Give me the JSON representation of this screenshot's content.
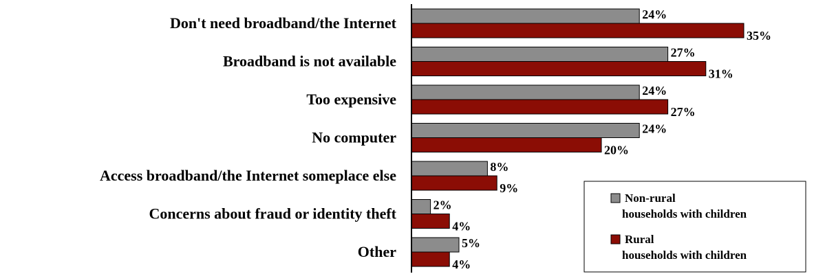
{
  "chart_data": {
    "type": "bar",
    "orientation": "horizontal",
    "categories": [
      "Don't need broadband/the Internet",
      "Broadband is not available",
      "Too expensive",
      "No computer",
      "Access broadband/the Internet someplace else",
      "Concerns about fraud or identity theft",
      "Other"
    ],
    "series": [
      {
        "name": "Non-rural households with children",
        "legend_lines": [
          "Non-rural",
          "households with children"
        ],
        "color": "#8c8c8c",
        "values": [
          24,
          27,
          24,
          24,
          8,
          2,
          5
        ],
        "labels": [
          "24%",
          "27%",
          "24%",
          "24%",
          "8%",
          "2%",
          "5%"
        ]
      },
      {
        "name": "Rural households with children",
        "legend_lines": [
          "Rural",
          "households with children"
        ],
        "color": "#8b0d05",
        "values": [
          35,
          31,
          27,
          20,
          9,
          4,
          4
        ],
        "labels": [
          "35%",
          "31%",
          "27%",
          "20%",
          "9%",
          "4%",
          "4%"
        ]
      }
    ],
    "xlim": [
      0,
      40
    ],
    "grid": false,
    "legend_position": "bottom-right",
    "title": "",
    "xlabel": "",
    "ylabel": ""
  }
}
